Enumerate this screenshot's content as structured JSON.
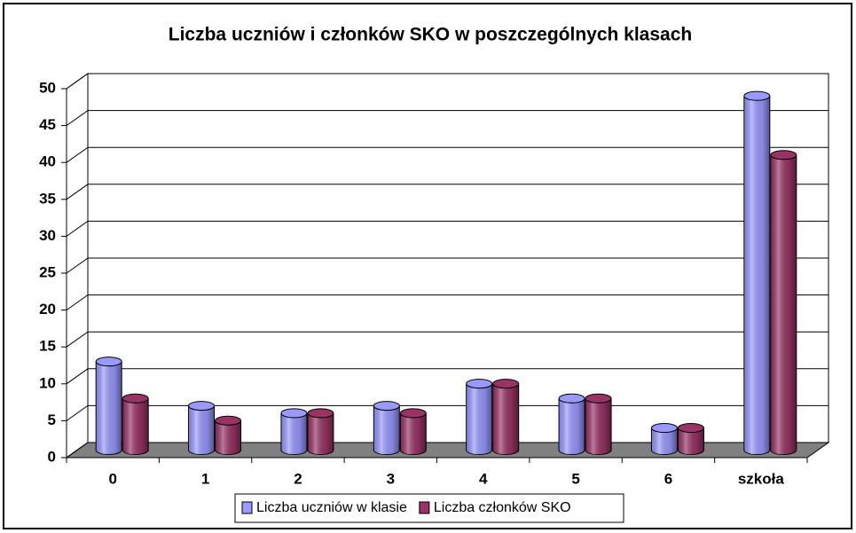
{
  "chart_data": {
    "type": "bar3d",
    "title": "Liczba uczniów i członków SKO w poszczególnych klasach",
    "categories": [
      "0",
      "1",
      "2",
      "3",
      "4",
      "5",
      "6",
      "szkoła"
    ],
    "series": [
      {
        "name": "Liczba uczniów w klasie",
        "color": "#9999ff",
        "values": [
          12,
          6,
          5,
          6,
          9,
          7,
          3,
          48
        ]
      },
      {
        "name": "Liczba członków SKO",
        "color": "#993366",
        "values": [
          7,
          4,
          5,
          5,
          9,
          7,
          3,
          40
        ]
      }
    ],
    "ylim": [
      0,
      50
    ],
    "yticks": [
      0,
      5,
      10,
      15,
      20,
      25,
      30,
      35,
      40,
      45,
      50
    ],
    "grid": true,
    "legend": "bottom"
  }
}
